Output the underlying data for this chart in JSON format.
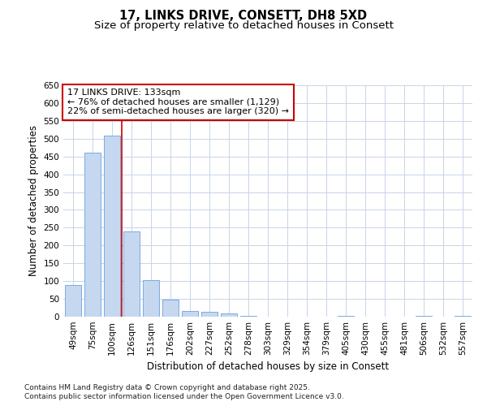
{
  "title": "17, LINKS DRIVE, CONSETT, DH8 5XD",
  "subtitle": "Size of property relative to detached houses in Consett",
  "xlabel": "Distribution of detached houses by size in Consett",
  "ylabel": "Number of detached properties",
  "categories": [
    "49sqm",
    "75sqm",
    "100sqm",
    "126sqm",
    "151sqm",
    "176sqm",
    "202sqm",
    "227sqm",
    "252sqm",
    "278sqm",
    "303sqm",
    "329sqm",
    "354sqm",
    "379sqm",
    "405sqm",
    "430sqm",
    "455sqm",
    "481sqm",
    "506sqm",
    "532sqm",
    "557sqm"
  ],
  "values": [
    88,
    460,
    508,
    240,
    103,
    47,
    17,
    13,
    9,
    3,
    0,
    0,
    0,
    0,
    3,
    0,
    0,
    0,
    3,
    0,
    3
  ],
  "bar_color": "#c5d8f0",
  "bar_edge_color": "#7aabe0",
  "red_line_index": 3,
  "annotation_line1": "17 LINKS DRIVE: 133sqm",
  "annotation_line2": "← 76% of detached houses are smaller (1,129)",
  "annotation_line3": "22% of semi-detached houses are larger (320) →",
  "annotation_box_color": "#ffffff",
  "annotation_box_edge": "#cc0000",
  "red_line_color": "#cc0000",
  "ylim": [
    0,
    650
  ],
  "yticks": [
    0,
    50,
    100,
    150,
    200,
    250,
    300,
    350,
    400,
    450,
    500,
    550,
    600,
    650
  ],
  "grid_color": "#c8d4e8",
  "background_color": "#ffffff",
  "footnote1": "Contains HM Land Registry data © Crown copyright and database right 2025.",
  "footnote2": "Contains public sector information licensed under the Open Government Licence v3.0.",
  "title_fontsize": 10.5,
  "subtitle_fontsize": 9.5,
  "tick_fontsize": 7.5,
  "label_fontsize": 8.5,
  "annotation_fontsize": 8,
  "footnote_fontsize": 6.5
}
